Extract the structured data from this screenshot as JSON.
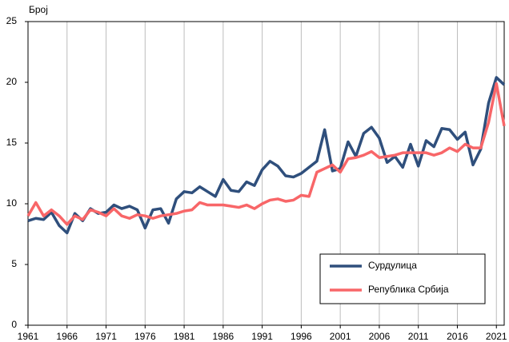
{
  "chart_data": {
    "type": "line",
    "y_label": "Број",
    "x": [
      1961,
      1962,
      1963,
      1964,
      1965,
      1966,
      1967,
      1968,
      1969,
      1970,
      1971,
      1972,
      1973,
      1974,
      1975,
      1976,
      1977,
      1978,
      1979,
      1980,
      1981,
      1982,
      1983,
      1984,
      1985,
      1986,
      1987,
      1988,
      1989,
      1990,
      1991,
      1992,
      1993,
      1994,
      1995,
      1996,
      1997,
      1998,
      1999,
      2000,
      2001,
      2002,
      2003,
      2004,
      2005,
      2006,
      2007,
      2008,
      2009,
      2010,
      2011,
      2012,
      2013,
      2014,
      2015,
      2016,
      2017,
      2018,
      2019,
      2020,
      2021,
      2022
    ],
    "series": [
      {
        "name": "Сурдулица",
        "color": "#2f4f7c",
        "values": [
          8.6,
          8.8,
          8.7,
          9.3,
          8.2,
          7.6,
          9.2,
          8.6,
          9.6,
          9.2,
          9.3,
          9.9,
          9.6,
          9.8,
          9.5,
          8.0,
          9.5,
          9.6,
          8.4,
          10.4,
          11.0,
          10.9,
          11.4,
          11.0,
          10.6,
          12.0,
          11.1,
          11.0,
          11.8,
          11.5,
          12.8,
          13.5,
          13.1,
          12.3,
          12.2,
          12.5,
          13.0,
          13.5,
          16.1,
          12.7,
          12.9,
          15.1,
          13.9,
          15.8,
          16.3,
          15.4,
          13.4,
          13.9,
          13.0,
          14.9,
          13.1,
          15.2,
          14.7,
          16.2,
          16.1,
          15.3,
          15.9,
          13.2,
          14.5,
          18.3,
          20.4,
          19.8
        ]
      },
      {
        "name": "Република Србија",
        "color": "#f86668",
        "values": [
          9.0,
          10.1,
          9.0,
          9.5,
          9.0,
          8.3,
          9.0,
          8.7,
          9.5,
          9.3,
          9.0,
          9.6,
          9.0,
          8.8,
          9.1,
          9.0,
          8.8,
          9.0,
          9.1,
          9.2,
          9.4,
          9.5,
          10.1,
          9.9,
          9.9,
          9.9,
          9.8,
          9.7,
          9.9,
          9.6,
          10.0,
          10.3,
          10.4,
          10.2,
          10.3,
          10.7,
          10.6,
          12.6,
          12.9,
          13.2,
          12.6,
          13.7,
          13.8,
          14.0,
          14.3,
          13.8,
          13.9,
          14.0,
          14.2,
          14.2,
          14.2,
          14.2,
          14.0,
          14.2,
          14.6,
          14.3,
          14.9,
          14.6,
          14.6,
          16.7,
          19.9,
          16.4
        ]
      }
    ],
    "xlim": [
      1961,
      2022
    ],
    "xticks": [
      1961,
      1966,
      1971,
      1976,
      1981,
      1986,
      1991,
      1996,
      2001,
      2006,
      2011,
      2016,
      2021
    ],
    "ylim": [
      0,
      25
    ],
    "yticks": [
      0,
      5,
      10,
      15,
      20,
      25
    ],
    "grid": "x",
    "legend": "lower right"
  }
}
